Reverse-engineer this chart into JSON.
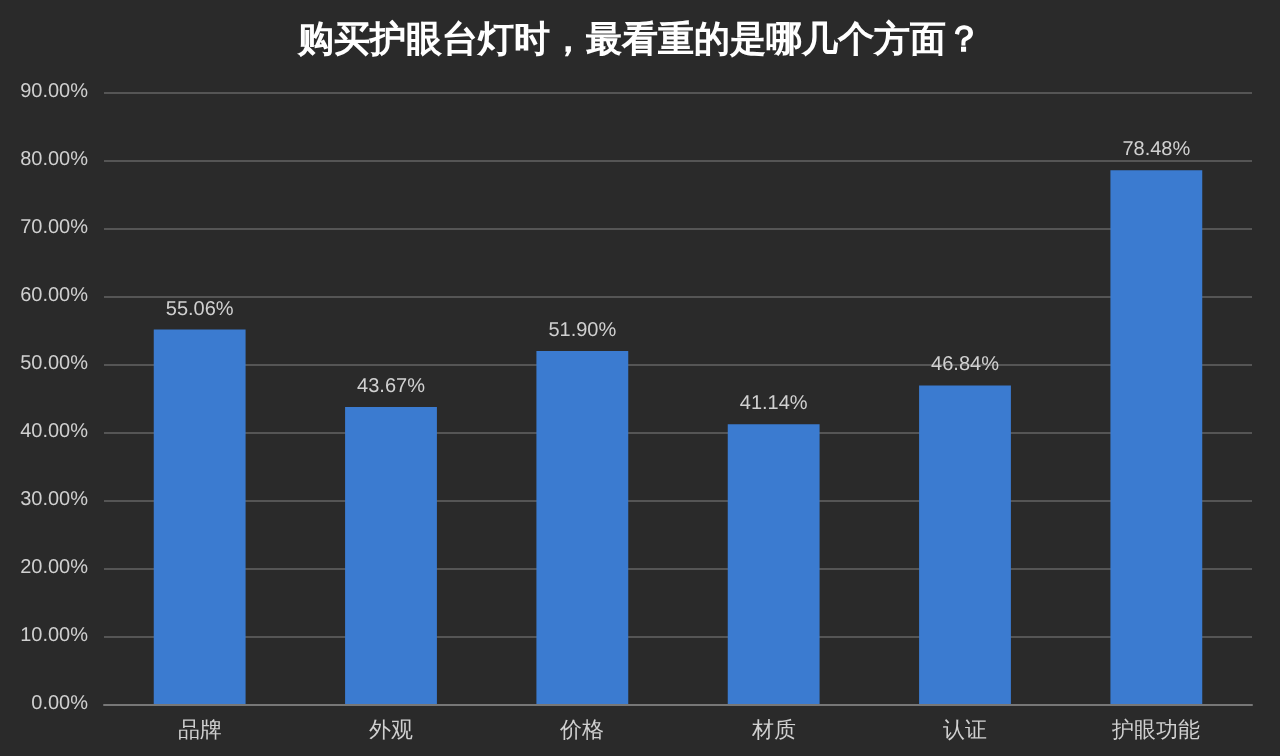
{
  "chart_data": {
    "type": "bar",
    "title": "购买护眼台灯时，最看重的是哪几个方面？",
    "categories": [
      "品牌",
      "外观",
      "价格",
      "材质",
      "认证",
      "护眼功能"
    ],
    "values": [
      55.06,
      43.67,
      51.9,
      41.14,
      46.84,
      78.48
    ],
    "value_labels": [
      "55.06%",
      "43.67%",
      "51.90%",
      "41.14%",
      "46.84%",
      "78.48%"
    ],
    "color": "#3b7bd0",
    "ylim": [
      0,
      90
    ],
    "yticks": [
      {
        "value": 0,
        "label": "0.00%"
      },
      {
        "value": 10,
        "label": "10.00%"
      },
      {
        "value": 20,
        "label": "20.00%"
      },
      {
        "value": 30,
        "label": "30.00%"
      },
      {
        "value": 40,
        "label": "40.00%"
      },
      {
        "value": 50,
        "label": "50.00%"
      },
      {
        "value": 60,
        "label": "60.00%"
      },
      {
        "value": 70,
        "label": "70.00%"
      },
      {
        "value": 80,
        "label": "80.00%"
      },
      {
        "value": 90,
        "label": "90.00%"
      }
    ],
    "grid": "y"
  }
}
